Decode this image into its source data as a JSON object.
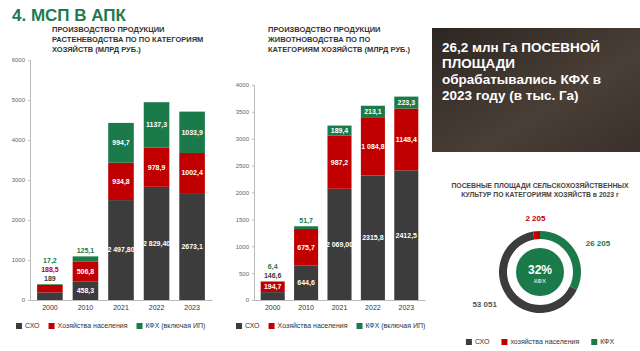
{
  "header": {
    "title": "4. МСП В АПК"
  },
  "panel": {
    "text": "26,2 млн Га ПОСЕВНОЙ ПЛОЩАДИ обрабатывались КФХ в 2023 году (в тыс. Га)"
  },
  "chart_data": [
    {
      "type": "bar",
      "title": "ПРОИЗВОДСТВО ПРОДУКЦИИ РАСТЕНЕВОДСТВА ПО ПО КАТЕГОРИЯМ ХОЗЯЙСТВ (МЛРД РУБ.)",
      "categories": [
        "2000",
        "2010",
        "2021",
        "2022",
        "2023"
      ],
      "series": [
        {
          "name": "СХО",
          "color": "#3c3c3c",
          "values": [
            189,
            458.3,
            2497.8,
            2829.4,
            2673.1
          ],
          "value_labels": [
            "189",
            "458,3",
            "2 497,80",
            "2 829,40",
            "2673,1"
          ]
        },
        {
          "name": "Хозяйства населения",
          "color": "#c00000",
          "values": [
            188.5,
            506.8,
            934.8,
            978.9,
            1002.4
          ],
          "value_labels": [
            "188,5",
            "506,8",
            "934,8",
            "978,9",
            "1002,4"
          ]
        },
        {
          "name": "КФХ (включая ИП)",
          "color": "#1b7a4a",
          "values": [
            17.2,
            125.1,
            994.7,
            1137.3,
            1033.9
          ],
          "value_labels": [
            "17,2",
            "125,1",
            "994,7",
            "1137,3",
            "1033,9"
          ]
        }
      ],
      "ylim": [
        0,
        6000
      ],
      "yticks": [
        0,
        1000,
        2000,
        3000,
        4000,
        5000,
        6000
      ],
      "stacked": true,
      "data_labels": true,
      "grid": false,
      "legend": "bottom"
    },
    {
      "type": "bar",
      "title": "ПРОИЗВОДСТВО ПРОДУКЦИИ ЖИВОТНОВОДСТВА ПО ПО КАТЕГОРИЯМ ХОЗЯЙСТВ (МЛРД РУБ.)",
      "categories": [
        "2000",
        "2010",
        "2021",
        "2022",
        "2023"
      ],
      "series": [
        {
          "name": "СХО",
          "color": "#3c3c3c",
          "values": [
            146.6,
            644.6,
            2069.0,
            2315.8,
            2412.5
          ],
          "value_labels": [
            "146,6",
            "644,6",
            "2 069,00",
            "2315,8",
            "2412,5"
          ]
        },
        {
          "name": "Хозяйства населения",
          "color": "#c00000",
          "values": [
            194.7,
            675.7,
            987.2,
            1084.8,
            1148.4
          ],
          "value_labels": [
            "194,7",
            "675,7",
            "987,2",
            "1 084,8",
            "1148,4"
          ]
        },
        {
          "name": "КФХ (включая ИП)",
          "color": "#1b7a4a",
          "values": [
            6.4,
            51.7,
            189.4,
            213.1,
            223.3
          ],
          "value_labels": [
            "6,4",
            "51,7",
            "189,4",
            "213,1",
            "223,3"
          ]
        }
      ],
      "ylim": [
        0,
        4000
      ],
      "yticks": [
        0,
        500,
        1000,
        1500,
        2000,
        2500,
        3000,
        3500,
        4000
      ],
      "stacked": true,
      "data_labels": true,
      "grid": false,
      "legend": "bottom"
    },
    {
      "type": "pie",
      "title": "ПОСЕВНЫЕ ПЛОЩАДИ СЕЛЬСКОХОЗЯЙСТВЕННЫХ КУЛЬТУР ПО КАТЕГОРИЯМ ХОЗЯЙСТВ в 2023 г",
      "categories": [
        "СХО",
        "хозяйства населения",
        "КФХ"
      ],
      "values": [
        53051,
        2205,
        26205
      ],
      "value_labels": [
        "53 051",
        "2 205",
        "26 205"
      ],
      "colors": [
        "#3c3c3c",
        "#c00000",
        "#1b7a4a"
      ],
      "annotations": [
        "32%",
        "КФХ"
      ],
      "data_labels": true,
      "legend": "bottom"
    }
  ]
}
